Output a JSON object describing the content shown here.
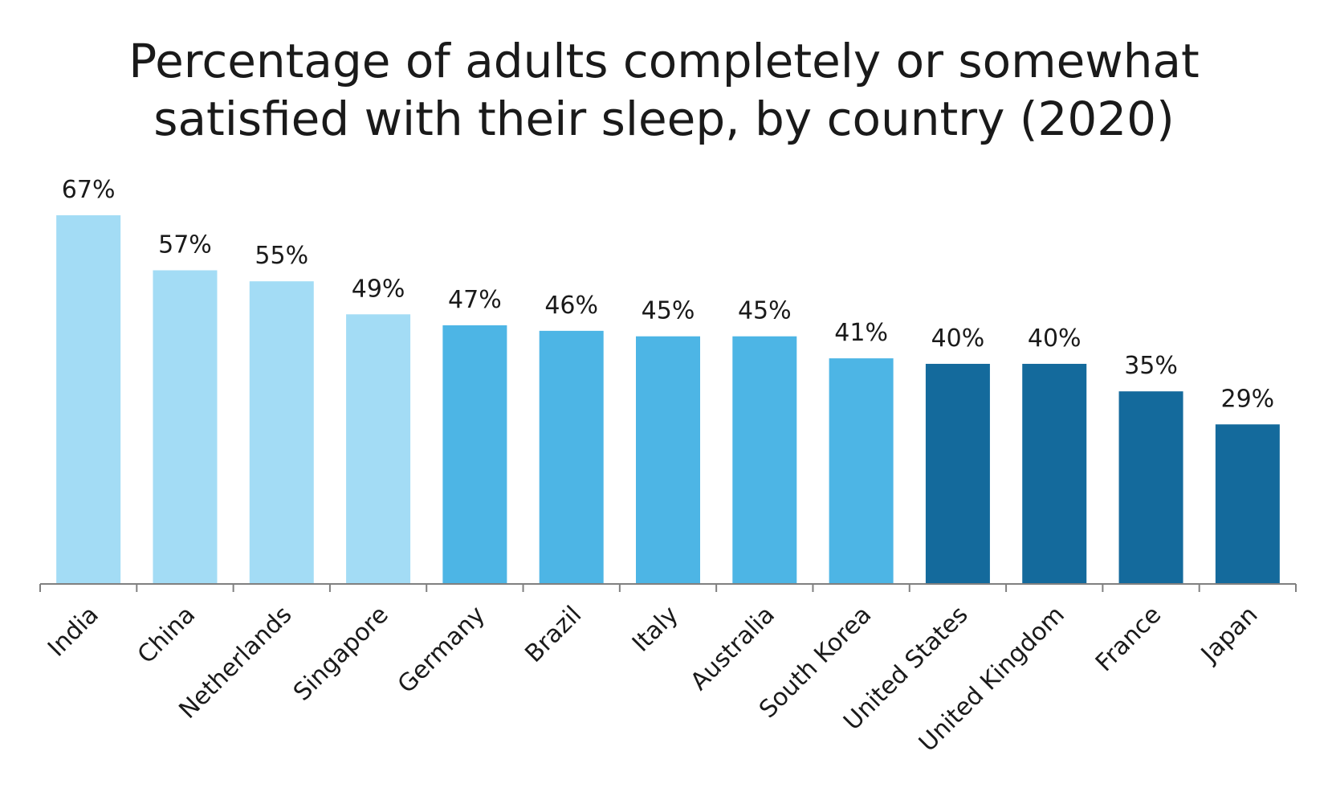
{
  "chart_data": {
    "type": "bar",
    "title_lines": [
      "Percentage of adults completely or somewhat",
      "satisfied with their sleep, by country (2020)"
    ],
    "categories": [
      "India",
      "China",
      "Netherlands",
      "Singapore",
      "Germany",
      "Brazil",
      "Italy",
      "Australia",
      "South Korea",
      "United States",
      "United Kingdom",
      "France",
      "Japan"
    ],
    "values": [
      67,
      57,
      55,
      49,
      47,
      46,
      45,
      45,
      41,
      40,
      40,
      35,
      29
    ],
    "value_labels": [
      "67%",
      "57%",
      "55%",
      "49%",
      "47%",
      "46%",
      "45%",
      "45%",
      "41%",
      "40%",
      "40%",
      "35%",
      "29%"
    ],
    "bar_colors": [
      "#a3dcf5",
      "#a3dcf5",
      "#a3dcf5",
      "#a3dcf5",
      "#4db5e5",
      "#4db5e5",
      "#4db5e5",
      "#4db5e5",
      "#4db5e5",
      "#146a9c",
      "#146a9c",
      "#146a9c",
      "#146a9c"
    ],
    "ylim": [
      0,
      67
    ],
    "grid": false,
    "legend": "none",
    "axis_color": "#808080"
  }
}
